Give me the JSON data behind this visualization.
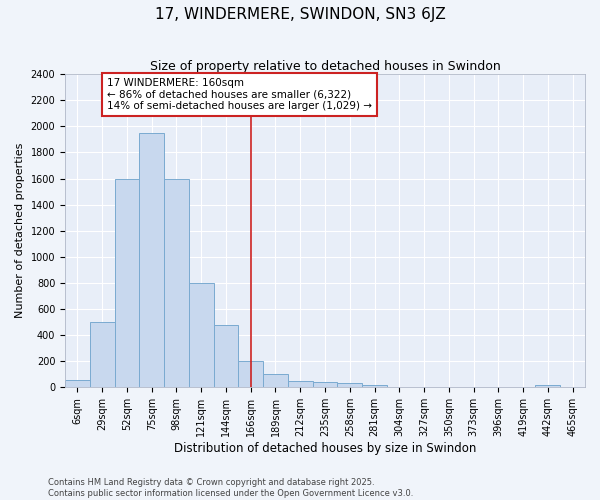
{
  "title": "17, WINDERMERE, SWINDON, SN3 6JZ",
  "subtitle": "Size of property relative to detached houses in Swindon",
  "xlabel": "Distribution of detached houses by size in Swindon",
  "ylabel": "Number of detached properties",
  "bar_color": "#c8d8ee",
  "bar_edge_color": "#7aaad0",
  "background_color": "#e8eef8",
  "fig_background_color": "#f0f4fa",
  "grid_color": "#ffffff",
  "categories": [
    "6sqm",
    "29sqm",
    "52sqm",
    "75sqm",
    "98sqm",
    "121sqm",
    "144sqm",
    "166sqm",
    "189sqm",
    "212sqm",
    "235sqm",
    "258sqm",
    "281sqm",
    "304sqm",
    "327sqm",
    "350sqm",
    "373sqm",
    "396sqm",
    "419sqm",
    "442sqm",
    "465sqm"
  ],
  "values": [
    60,
    500,
    1600,
    1950,
    1600,
    800,
    480,
    200,
    100,
    45,
    40,
    30,
    15,
    5,
    5,
    0,
    0,
    0,
    0,
    20,
    0
  ],
  "vline_index": 7,
  "vline_color": "#cc2222",
  "annotation_text": "17 WINDERMERE: 160sqm\n← 86% of detached houses are smaller (6,322)\n14% of semi-detached houses are larger (1,029) →",
  "annotation_box_color": "#cc2222",
  "ylim": [
    0,
    2400
  ],
  "yticks": [
    0,
    200,
    400,
    600,
    800,
    1000,
    1200,
    1400,
    1600,
    1800,
    2000,
    2200,
    2400
  ],
  "footnote": "Contains HM Land Registry data © Crown copyright and database right 2025.\nContains public sector information licensed under the Open Government Licence v3.0.",
  "title_fontsize": 11,
  "subtitle_fontsize": 9,
  "tick_fontsize": 7,
  "ylabel_fontsize": 8,
  "xlabel_fontsize": 8.5,
  "annot_fontsize": 7.5,
  "footnote_fontsize": 6
}
